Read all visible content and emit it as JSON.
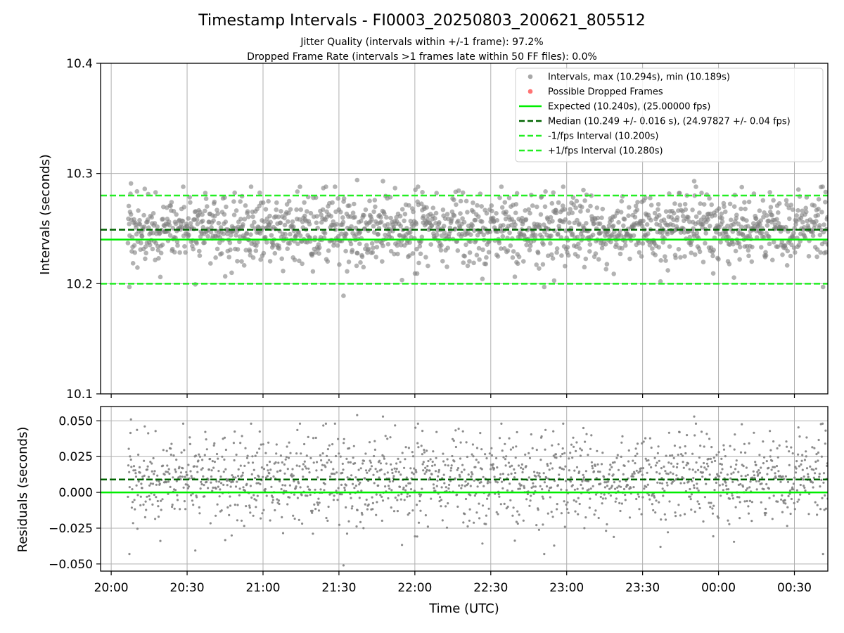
{
  "chart_data": {
    "title": "Timestamp Intervals - FI0003_20250803_200621_805512",
    "subtitle_lines": [
      "Jitter Quality (intervals within +/-1 frame): 97.2%",
      "Dropped Frame Rate (intervals >1 frames late within 50 FF files): 0.0%"
    ],
    "colors": {
      "points": "#808080",
      "dropped": "#ff0000",
      "expected": "#00ee00",
      "median": "#006400",
      "fps_bound": "#22ee22",
      "grid": "#b0b0b0"
    },
    "x_axis": {
      "label": "Time (UTC)",
      "range_hours_since_2000": [
        19.93,
        24.72
      ],
      "ticks": [
        {
          "label": "20:00",
          "hour": 20.0
        },
        {
          "label": "20:30",
          "hour": 20.5
        },
        {
          "label": "21:00",
          "hour": 21.0
        },
        {
          "label": "21:30",
          "hour": 21.5
        },
        {
          "label": "22:00",
          "hour": 22.0
        },
        {
          "label": "22:30",
          "hour": 22.5
        },
        {
          "label": "23:00",
          "hour": 23.0
        },
        {
          "label": "23:30",
          "hour": 23.5
        },
        {
          "label": "00:00",
          "hour": 24.0
        },
        {
          "label": "00:30",
          "hour": 24.5
        }
      ],
      "data_start_hour": 20.11,
      "data_end_hour": 24.72,
      "grid": true
    },
    "panels": [
      {
        "type": "scatter",
        "ylabel": "Intervals (seconds)",
        "ylim": [
          10.1,
          10.4
        ],
        "yticks": [
          "10.1",
          "10.2",
          "10.3",
          "10.4"
        ],
        "ytick_values": [
          10.1,
          10.2,
          10.3,
          10.4
        ],
        "grid": true,
        "legend_position": "upper-right",
        "legend": [
          {
            "kind": "dot",
            "color": "#999999",
            "label": "Intervals, max (10.294s), min (10.189s)"
          },
          {
            "kind": "dot",
            "color": "#ff5a5a",
            "label": "Possible Dropped Frames"
          },
          {
            "kind": "solid",
            "color": "#00ee00",
            "label": "Expected (10.240s), (25.00000 fps)"
          },
          {
            "kind": "dashed",
            "color": "#006400",
            "label": "Median (10.249 +/- 0.016 s), (24.97827 +/- 0.04 fps)"
          },
          {
            "kind": "dashed",
            "color": "#22ee22",
            "label": "-1/fps Interval (10.200s)"
          },
          {
            "kind": "dashed",
            "color": "#22ee22",
            "label": "+1/fps Interval (10.280s)"
          }
        ],
        "reference_lines": [
          {
            "name": "expected",
            "y": 10.24,
            "style": "solid",
            "color": "#00ee00"
          },
          {
            "name": "median",
            "y": 10.249,
            "style": "dashed",
            "color": "#006400"
          },
          {
            "name": "minus-1fps",
            "y": 10.2,
            "style": "dashed",
            "color": "#22ee22"
          },
          {
            "name": "plus-1fps",
            "y": 10.28,
            "style": "dashed",
            "color": "#22ee22"
          }
        ],
        "series": {
          "median": 10.249,
          "std": 0.016,
          "max": 10.294,
          "min": 10.189,
          "count": 1620,
          "outliers": [
            {
              "x": 20.13,
              "y": 10.291
            },
            {
              "x": 20.12,
              "y": 10.197
            },
            {
              "x": 21.62,
              "y": 10.294
            },
            {
              "x": 21.53,
              "y": 10.189
            },
            {
              "x": 21.79,
              "y": 10.293
            },
            {
              "x": 23.84,
              "y": 10.293
            },
            {
              "x": 23.11,
              "y": 10.285
            },
            {
              "x": 22.05,
              "y": 10.283
            }
          ]
        }
      },
      {
        "type": "scatter",
        "ylabel": "Residuals (seconds)",
        "ylim": [
          -0.055,
          0.06
        ],
        "yticks": [
          "−0.050",
          "−0.025",
          "0.000",
          "0.025",
          "0.050"
        ],
        "ytick_values": [
          -0.05,
          -0.025,
          0.0,
          0.025,
          0.05
        ],
        "grid": true,
        "reference_lines": [
          {
            "name": "zero",
            "y": 0.0,
            "style": "solid",
            "color": "#00ee00"
          },
          {
            "name": "median-offset",
            "y": 0.009,
            "style": "dashed",
            "color": "#006400"
          }
        ],
        "series": {
          "center": 0.009,
          "std": 0.016,
          "max": 0.054,
          "min": -0.051,
          "count": 1620
        }
      }
    ]
  }
}
